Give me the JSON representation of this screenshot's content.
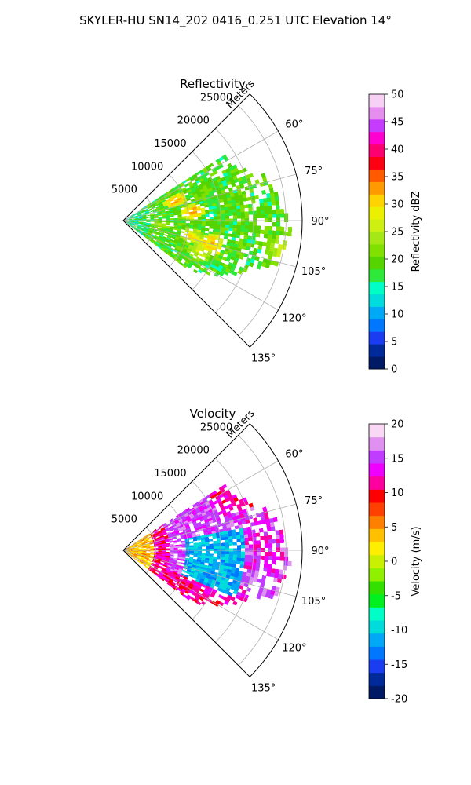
{
  "figure": {
    "suptitle": "SKYLER-HU  SN14_202  0416_0.251 UTC Elevation 14°"
  },
  "chart_data": [
    {
      "type": "heatmap",
      "title": "Reflectivity",
      "range_label": "Meters",
      "range_ticks": [
        "5000",
        "10000",
        "15000",
        "20000",
        "25000"
      ],
      "range_tick_values": [
        5000,
        10000,
        15000,
        20000,
        25000
      ],
      "range_max": 27500,
      "azimuth_ticks": [
        "60°",
        "75°",
        "90°",
        "105°",
        "120°",
        "135°"
      ],
      "azimuth_tick_values": [
        60,
        75,
        90,
        105,
        120,
        135
      ],
      "azimuth_range": [
        45,
        135
      ],
      "grid": true,
      "colorbar": {
        "label": "Reflectivity dBZ",
        "ticks": [
          "0",
          "5",
          "10",
          "15",
          "20",
          "25",
          "30",
          "35",
          "40",
          "45",
          "50"
        ],
        "range": [
          0,
          50
        ],
        "colors": [
          "#001a66",
          "#002a99",
          "#1a3df2",
          "#0077ff",
          "#00a8f5",
          "#00dcdc",
          "#00ffc6",
          "#2ee83a",
          "#55d400",
          "#80e000",
          "#a6e815",
          "#cdef12",
          "#eaf000",
          "#ffd300",
          "#ff9a00",
          "#ff5a00",
          "#ff0012",
          "#ff0070",
          "#ff00d0",
          "#c63cff",
          "#e68df0",
          "#f7d0f5"
        ]
      }
    },
    {
      "type": "heatmap",
      "title": "Velocity",
      "range_label": "Meters",
      "range_ticks": [
        "5000",
        "10000",
        "15000",
        "20000",
        "25000"
      ],
      "range_tick_values": [
        5000,
        10000,
        15000,
        20000,
        25000
      ],
      "range_max": 27500,
      "azimuth_ticks": [
        "60°",
        "75°",
        "90°",
        "105°",
        "120°",
        "135°"
      ],
      "azimuth_tick_values": [
        60,
        75,
        90,
        105,
        120,
        135
      ],
      "azimuth_range": [
        45,
        135
      ],
      "grid": true,
      "colorbar": {
        "label": "Velocity (m/s)",
        "ticks": [
          "-20",
          "-15",
          "-10",
          "-5",
          "0",
          "5",
          "10",
          "15",
          "20"
        ],
        "range": [
          -20,
          20
        ],
        "colors": [
          "#001a66",
          "#002a99",
          "#1a3df2",
          "#0077ff",
          "#00a8f5",
          "#00dcdc",
          "#00ffc6",
          "#00f020",
          "#33e000",
          "#8ff000",
          "#c8f000",
          "#ffee00",
          "#ffc000",
          "#ff8000",
          "#ff4000",
          "#ff0000",
          "#ff00a0",
          "#f000ff",
          "#c03cff",
          "#e090f0",
          "#f8d8f5"
        ]
      }
    }
  ]
}
